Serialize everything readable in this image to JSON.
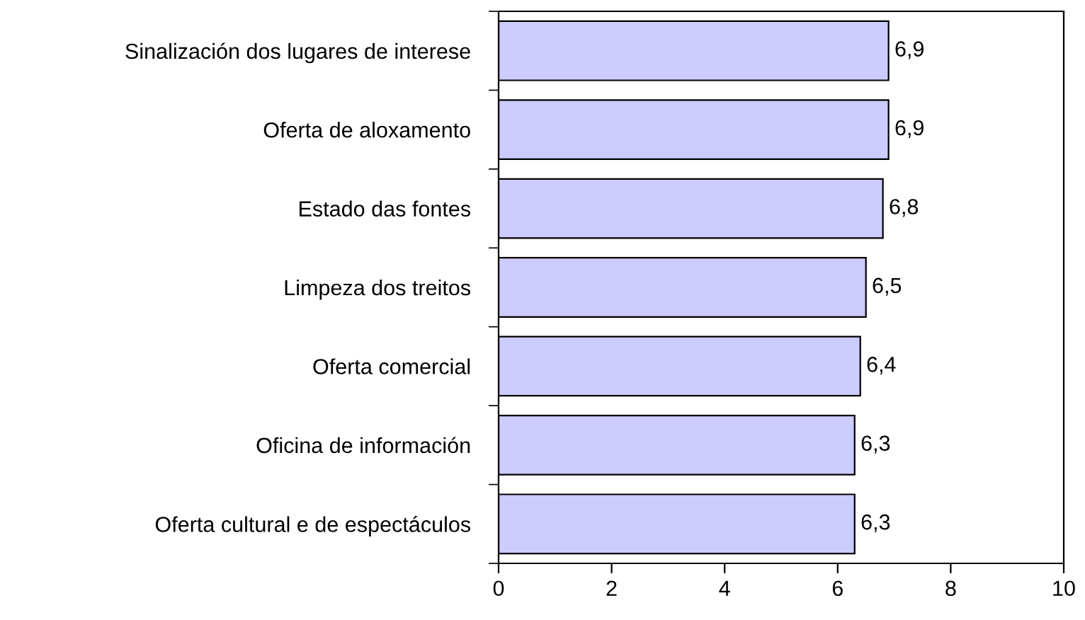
{
  "chart_data": {
    "type": "bar",
    "orientation": "horizontal",
    "categories": [
      "Sinalización dos lugares de interese",
      "Oferta de aloxamento",
      "Estado das fontes",
      "Limpeza dos treitos",
      "Oferta comercial",
      "Oficina de información",
      "Oferta cultural e de espectáculos"
    ],
    "values": [
      6.9,
      6.9,
      6.8,
      6.5,
      6.4,
      6.3,
      6.3
    ],
    "value_labels": [
      "6,9",
      "6,9",
      "6,8",
      "6,5",
      "6,4",
      "6,3",
      "6,3"
    ],
    "color": "#ccccff",
    "xlim": [
      0,
      10
    ],
    "xticks": [
      0,
      2,
      4,
      6,
      8,
      10
    ],
    "grid": false,
    "legend": false
  }
}
